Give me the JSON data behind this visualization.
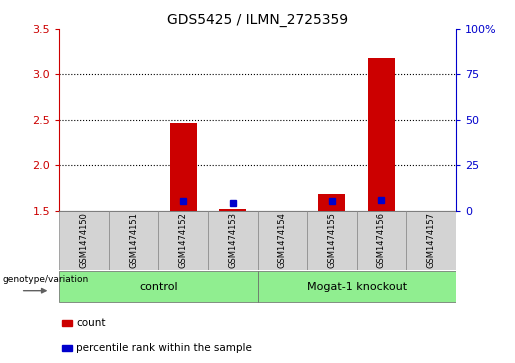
{
  "title": "GDS5425 / ILMN_2725359",
  "samples": [
    "GSM1474150",
    "GSM1474151",
    "GSM1474152",
    "GSM1474153",
    "GSM1474154",
    "GSM1474155",
    "GSM1474156",
    "GSM1474157"
  ],
  "count_values": [
    1.5,
    1.5,
    2.47,
    1.52,
    1.5,
    1.68,
    3.18,
    1.5
  ],
  "percentile_values": [
    null,
    null,
    5.0,
    4.0,
    null,
    5.0,
    6.0,
    null
  ],
  "ylim_left": [
    1.5,
    3.5
  ],
  "ylim_right": [
    0,
    100
  ],
  "yticks_left": [
    1.5,
    2.0,
    2.5,
    3.0,
    3.5
  ],
  "yticks_right": [
    0,
    25,
    50,
    75,
    100
  ],
  "ytick_labels_right": [
    "0",
    "25",
    "50",
    "75",
    "100%"
  ],
  "groups": [
    {
      "label": "control",
      "indices": [
        0,
        1,
        2,
        3
      ],
      "color": "#90ee90"
    },
    {
      "label": "Mogat-1 knockout",
      "indices": [
        4,
        5,
        6,
        7
      ],
      "color": "#90ee90"
    }
  ],
  "bar_color": "#cc0000",
  "percentile_color": "#0000cc",
  "bar_width": 0.55,
  "sample_box_color": "#d3d3d3",
  "legend_items": [
    {
      "color": "#cc0000",
      "label": "count"
    },
    {
      "color": "#0000cc",
      "label": "percentile rank within the sample"
    }
  ],
  "genotype_label": "genotype/variation",
  "arrow_color": "#606060"
}
